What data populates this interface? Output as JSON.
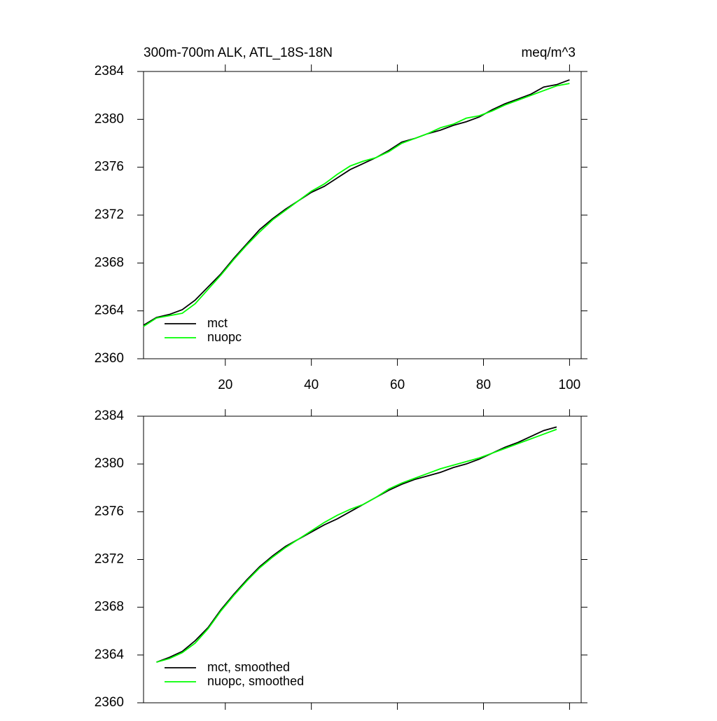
{
  "chart_data": [
    {
      "type": "line",
      "title": "300m-700m ALK, ATL_18S-18N",
      "units": "meq/m^3",
      "x": [
        1,
        4,
        7,
        10,
        13,
        16,
        19,
        22,
        25,
        28,
        31,
        34,
        37,
        40,
        43,
        46,
        49,
        52,
        55,
        58,
        61,
        64,
        67,
        70,
        73,
        76,
        79,
        82,
        85,
        88,
        91,
        94,
        97,
        100
      ],
      "series": [
        {
          "name": "mct",
          "color": "#000000",
          "values": [
            2362.8,
            2363.45,
            2363.7,
            2364.1,
            2364.9,
            2366.0,
            2367.1,
            2368.4,
            2369.6,
            2370.8,
            2371.7,
            2372.5,
            2373.2,
            2373.9,
            2374.4,
            2375.1,
            2375.8,
            2376.3,
            2376.8,
            2377.4,
            2378.1,
            2378.4,
            2378.8,
            2379.1,
            2379.5,
            2379.8,
            2380.2,
            2380.8,
            2381.3,
            2381.7,
            2382.1,
            2382.7,
            2382.9,
            2383.3
          ]
        },
        {
          "name": "nuopc",
          "color": "#00ff00",
          "values": [
            2362.7,
            2363.4,
            2363.6,
            2363.8,
            2364.6,
            2365.8,
            2367.0,
            2368.3,
            2369.5,
            2370.6,
            2371.6,
            2372.4,
            2373.2,
            2374.0,
            2374.6,
            2375.4,
            2376.1,
            2376.5,
            2376.8,
            2377.3,
            2378.0,
            2378.4,
            2378.8,
            2379.3,
            2379.6,
            2380.1,
            2380.3,
            2380.7,
            2381.2,
            2381.6,
            2382.0,
            2382.4,
            2382.8,
            2383.0
          ]
        }
      ],
      "xlim": [
        1,
        102.7
      ],
      "xticks": [
        20,
        40,
        60,
        80,
        100
      ],
      "ylim": [
        2360,
        2384
      ],
      "yticks": [
        2360,
        2364,
        2368,
        2372,
        2376,
        2380,
        2384
      ],
      "legend": "lower left"
    },
    {
      "type": "line",
      "x": [
        4,
        7,
        10,
        13,
        16,
        19,
        22,
        25,
        28,
        31,
        34,
        37,
        40,
        43,
        46,
        49,
        52,
        55,
        58,
        61,
        64,
        67,
        70,
        73,
        76,
        79,
        82,
        85,
        88,
        91,
        94,
        97
      ],
      "series": [
        {
          "name": "mct, smoothed",
          "color": "#000000",
          "values": [
            2363.4,
            2363.8,
            2364.3,
            2365.2,
            2366.3,
            2367.8,
            2369.1,
            2370.3,
            2371.4,
            2372.3,
            2373.1,
            2373.7,
            2374.3,
            2374.9,
            2375.4,
            2376.0,
            2376.6,
            2377.2,
            2377.8,
            2378.3,
            2378.7,
            2379.0,
            2379.3,
            2379.7,
            2380.0,
            2380.4,
            2380.9,
            2381.4,
            2381.8,
            2382.3,
            2382.8,
            2383.1
          ]
        },
        {
          "name": "nuopc, smoothed",
          "color": "#00ff00",
          "values": [
            2363.4,
            2363.7,
            2364.2,
            2365.0,
            2366.2,
            2367.7,
            2369.0,
            2370.2,
            2371.3,
            2372.2,
            2373.0,
            2373.7,
            2374.4,
            2375.1,
            2375.7,
            2376.2,
            2376.6,
            2377.2,
            2377.9,
            2378.4,
            2378.8,
            2379.2,
            2379.6,
            2379.9,
            2380.2,
            2380.5,
            2380.9,
            2381.3,
            2381.7,
            2382.1,
            2382.5,
            2382.9
          ]
        }
      ],
      "xlim": [
        1,
        102.7
      ],
      "xticks": [
        20,
        40,
        60,
        80,
        100
      ],
      "xtick_labels": false,
      "ylim": [
        2360,
        2384
      ],
      "yticks": [
        2360,
        2364,
        2368,
        2372,
        2376,
        2380,
        2384
      ],
      "legend": "lower left"
    }
  ]
}
